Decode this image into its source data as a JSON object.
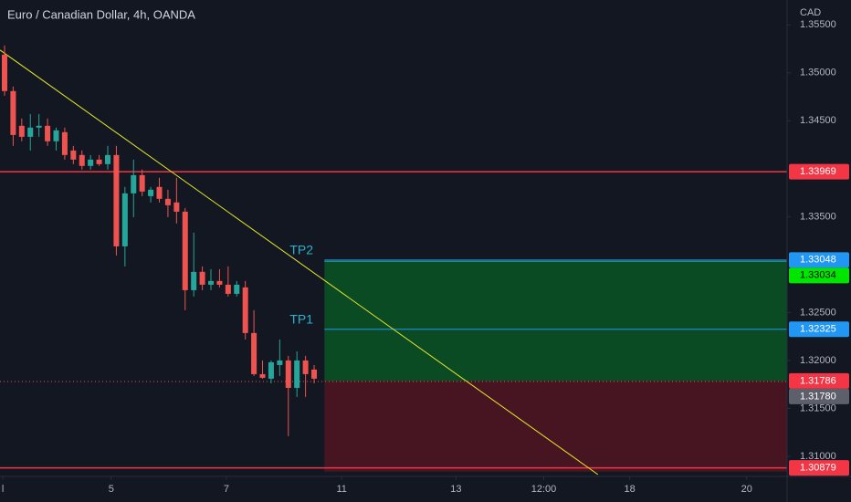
{
  "chart_data": {
    "type": "candlestick",
    "title": "Euro / Canadian Dollar, 4h, OANDA",
    "y_unit": "CAD",
    "colors": {
      "up": "#26a69a",
      "down": "#ef5350"
    },
    "open": [
      1.3519,
      1.3481,
      1.34448,
      1.34333,
      1.34429,
      1.34448,
      1.34286,
      1.34381,
      1.3419,
      1.34143,
      1.34029,
      1.34095,
      1.34048,
      1.34143,
      1.3319,
      1.33743,
      1.33933,
      1.33714,
      1.3381,
      1.33686,
      1.33648,
      1.33552,
      1.32733,
      1.32924,
      1.3279,
      1.32829,
      1.3279,
      1.32695,
      1.32762,
      1.32286,
      1.31857,
      1.3181,
      1.31952,
      1.32,
      1.31714,
      1.32,
      1.31905
    ],
    "high": [
      1.35286,
      1.34857,
      1.34524,
      1.34571,
      1.34571,
      1.34524,
      1.34429,
      1.34429,
      1.34238,
      1.3419,
      1.34143,
      1.34143,
      1.34238,
      1.34238,
      1.3381,
      1.34095,
      1.33991,
      1.3381,
      1.33905,
      1.33781,
      1.33905,
      1.3359,
      1.33333,
      1.32981,
      1.32952,
      1.32952,
      1.32981,
      1.32829,
      1.32829,
      1.32524,
      1.32,
      1.32,
      1.32219,
      1.32048,
      1.32095,
      1.32048,
      1.31952
    ],
    "low": [
      1.34762,
      1.34238,
      1.34286,
      1.3419,
      1.34333,
      1.34238,
      1.3419,
      1.34095,
      1.34048,
      1.33991,
      1.33991,
      1.34029,
      1.33991,
      1.33095,
      1.32981,
      1.33495,
      1.33714,
      1.33648,
      1.33648,
      1.33495,
      1.33429,
      1.32524,
      1.32667,
      1.32733,
      1.32733,
      1.32762,
      1.32667,
      1.32667,
      1.32219,
      1.31838,
      1.3181,
      1.31762,
      1.31838,
      1.3121,
      1.31619,
      1.31619,
      1.31762
    ],
    "close": [
      1.3481,
      1.34352,
      1.34333,
      1.34429,
      1.34448,
      1.34286,
      1.344,
      1.34143,
      1.34095,
      1.34029,
      1.34095,
      1.34048,
      1.34143,
      1.3319,
      1.33743,
      1.33933,
      1.33762,
      1.33781,
      1.33686,
      1.33619,
      1.33552,
      1.32733,
      1.32924,
      1.3279,
      1.32829,
      1.3279,
      1.32695,
      1.3279,
      1.32286,
      1.31857,
      1.31819,
      1.31981,
      1.32,
      1.31714,
      1.32,
      1.31857,
      1.3181
    ],
    "xlim": [
      -0.53,
      91.0
    ],
    "xticks": [
      {
        "value": -0.2,
        "label": "l"
      },
      {
        "value": 12.4,
        "label": "5"
      },
      {
        "value": 25.8,
        "label": "7"
      },
      {
        "value": 39.2,
        "label": "11"
      },
      {
        "value": 52.5,
        "label": "13"
      },
      {
        "value": 62.7,
        "label": "12:00"
      },
      {
        "value": 72.7,
        "label": "18"
      },
      {
        "value": 86.3,
        "label": "20"
      }
    ],
    "ylim": [
      1.3079,
      1.3576
    ],
    "yticks": [
      {
        "value": 1.355,
        "label": "1.35500"
      },
      {
        "value": 1.35,
        "label": "1.35000"
      },
      {
        "value": 1.345,
        "label": "1.34500"
      },
      {
        "value": 1.335,
        "label": "1.33500"
      },
      {
        "value": 1.325,
        "label": "1.32500"
      },
      {
        "value": 1.32,
        "label": "1.32000"
      },
      {
        "value": 1.315,
        "label": "1.31500"
      },
      {
        "value": 1.31,
        "label": "1.31000"
      }
    ],
    "levels": [
      {
        "value": 1.33969,
        "color": "#f23645"
      },
      {
        "value": 1.30879,
        "color": "#f23645"
      },
      {
        "value": 1.33048,
        "color": "#2196f3",
        "label": "TP2"
      },
      {
        "value": 1.32325,
        "color": "#2196f3",
        "label": "TP1"
      }
    ],
    "position": {
      "start": 37.2,
      "entry": 1.31786,
      "target": 1.33034,
      "stop": 1.3084,
      "target_color": "#00e600",
      "entry_color": "#f23645"
    },
    "last": {
      "value": 1.3178,
      "label": "1.31780",
      "color": "#5d606b"
    },
    "trendline": {
      "color": "#e6e62a",
      "points": [
        [
          -0.53,
          1.35238
        ],
        [
          69.0,
          1.3081
        ]
      ]
    }
  }
}
